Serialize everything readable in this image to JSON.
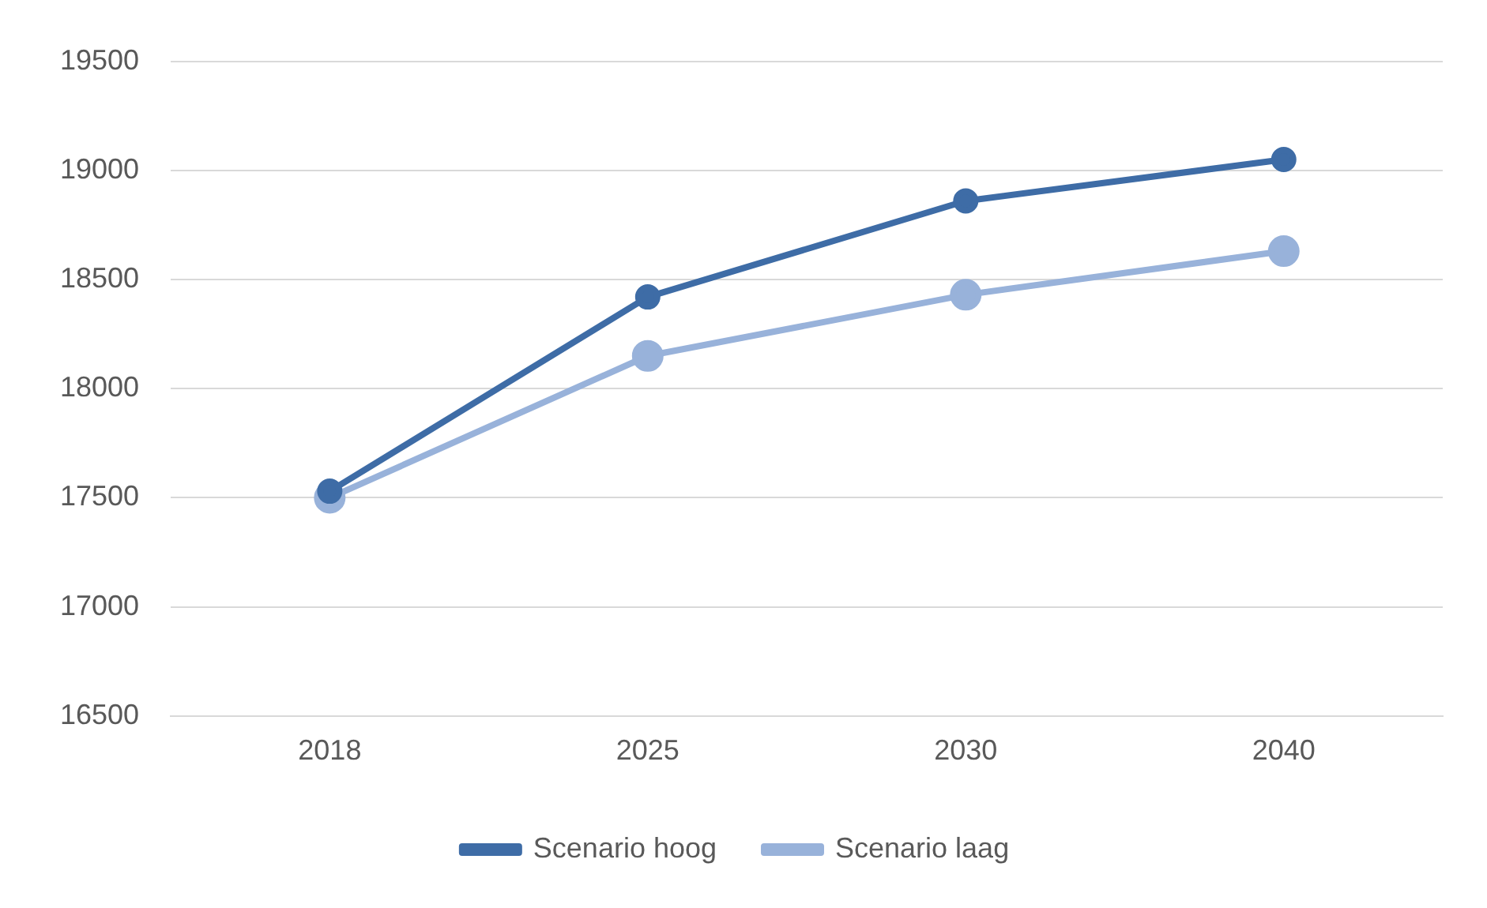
{
  "chart_data": {
    "type": "line",
    "categories": [
      "2018",
      "2025",
      "2030",
      "2040"
    ],
    "series": [
      {
        "name": "Scenario hoog",
        "color": "#3e6ca6",
        "values": [
          17530,
          18420,
          18860,
          19050
        ]
      },
      {
        "name": "Scenario laag",
        "color": "#98b2da",
        "values": [
          17500,
          18150,
          18430,
          18630
        ]
      }
    ],
    "ylim": [
      16500,
      19500
    ],
    "yticks": [
      16500,
      17000,
      17500,
      18000,
      18500,
      19000,
      19500
    ],
    "grid": "y",
    "legend": "bottom",
    "marker": "circle",
    "line_style": "solid"
  }
}
